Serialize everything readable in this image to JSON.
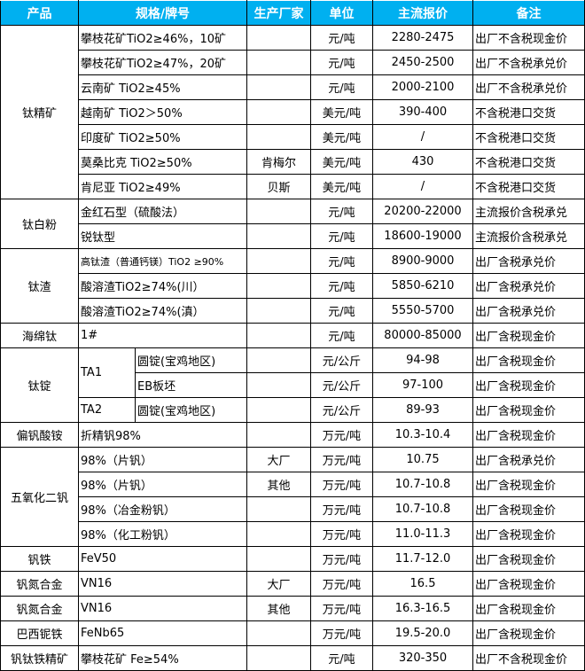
{
  "colors": {
    "header_bg": "#00B0F0",
    "header_text": "#FFFFFF"
  },
  "headers": [
    "产品",
    "规格/牌号",
    "生产厂家",
    "单位",
    "主流报价",
    "备注"
  ],
  "groups": [
    {
      "product": "钛精矿",
      "rows": [
        {
          "spec": "攀枝花矿TiO2≥46%，10矿",
          "maker": "",
          "unit": "元/吨",
          "price": "2280-2475",
          "note": "出厂不含税现金价"
        },
        {
          "spec": "攀枝花矿TiO2≥47%，20矿",
          "maker": "",
          "unit": "元/吨",
          "price": "2450-2500",
          "note": "出厂不含税承兑价"
        },
        {
          "spec": "云南矿 TiO2≥45%",
          "maker": "",
          "unit": "元/吨",
          "price": "2000-2100",
          "note": "出厂不含税承兑价"
        },
        {
          "spec": "越南矿 TiO2＞50%",
          "maker": "",
          "unit": "美元/吨",
          "price": "390-400",
          "note": "不含税港口交货"
        },
        {
          "spec": "印度矿 TiO2≥50%",
          "maker": "",
          "unit": "美元/吨",
          "price": "/",
          "note": "不含税港口交货"
        },
        {
          "spec": "莫桑比克 TiO2≥50%",
          "maker": "肯梅尔",
          "unit": "美元/吨",
          "price": "430",
          "note": "不含税港口交货"
        },
        {
          "spec": "肯尼亚 TiO2≥49%",
          "maker": "贝斯",
          "unit": "美元/吨",
          "price": "/",
          "note": "不含税港口交货"
        }
      ]
    },
    {
      "product": "钛白粉",
      "rows": [
        {
          "spec": "金红石型（硫酸法）",
          "maker": "",
          "unit": "元/吨",
          "price": "20200-22000",
          "note": "主流报价含税承兑"
        },
        {
          "spec": "锐钛型",
          "maker": "",
          "unit": "元/吨",
          "price": "18600-19000",
          "note": "主流报价含税承兑"
        }
      ]
    },
    {
      "product": "钛渣",
      "rows": [
        {
          "spec": "高钛渣（普通钙镁）TiO2 ≥90%",
          "maker": "",
          "unit": "元/吨",
          "price": "8900-9000",
          "note": "出厂含税承兑价",
          "small": true
        },
        {
          "spec": "酸溶渣TiO2≥74%(川）",
          "maker": "",
          "unit": "元/吨",
          "price": "5850-6210",
          "note": "出厂含税承兑价"
        },
        {
          "spec": "酸溶渣TiO2≥74%(滇）",
          "maker": "",
          "unit": "元/吨",
          "price": "5550-5700",
          "note": "出厂含税承兑价"
        }
      ]
    },
    {
      "product": "海绵钛",
      "rows": [
        {
          "spec": "1#",
          "maker": "",
          "unit": "元/吨",
          "price": "80000-85000",
          "note": "出厂含税现金价"
        }
      ]
    },
    {
      "product": "钛锭",
      "rows": [
        {
          "grade": "TA1",
          "grade_span": 2,
          "spec": "圆锭(宝鸡地区)",
          "maker": "",
          "unit": "元/公斤",
          "price": "94-98",
          "note": "出厂含税现金价"
        },
        {
          "spec": "EB板坯",
          "maker": "",
          "unit": "元/公斤",
          "price": "97-100",
          "note": "出厂含税现金价"
        },
        {
          "grade": "TA2",
          "grade_span": 1,
          "spec": "圆锭(宝鸡地区)",
          "maker": "",
          "unit": "元/公斤",
          "price": "89-93",
          "note": "出厂含税现金价"
        }
      ]
    },
    {
      "product": "偏钒酸铵",
      "rows": [
        {
          "spec": "折精钒98%",
          "maker": "",
          "unit": "万元/吨",
          "price": "10.3-10.4",
          "note": "出厂含税现金价"
        }
      ]
    },
    {
      "product": "五氧化二钒",
      "rows": [
        {
          "spec": "98%（片钒）",
          "maker": "大厂",
          "unit": "万元/吨",
          "price": "10.75",
          "note": "出厂含税承兑价"
        },
        {
          "spec": "98%（片钒）",
          "maker": "其他",
          "unit": "万元/吨",
          "price": "10.7-10.8",
          "note": "出厂含税现金价"
        },
        {
          "spec": "98%（冶金粉钒）",
          "maker": "",
          "unit": "万元/吨",
          "price": "10.7-10.8",
          "note": "出厂含税现金价"
        },
        {
          "spec": "98%（化工粉钒）",
          "maker": "",
          "unit": "万元/吨",
          "price": "11.0-11.3",
          "note": "出厂含税现金价"
        }
      ]
    },
    {
      "product": "钒铁",
      "rows": [
        {
          "spec": "FeV50",
          "maker": "",
          "unit": "万元/吨",
          "price": "11.7-12.0",
          "note": "出厂含税现金价"
        }
      ]
    },
    {
      "product": "钒氮合金",
      "rows": [
        {
          "spec": "VN16",
          "maker": "大厂",
          "unit": "万元/吨",
          "price": "16.5",
          "note": "出厂含税现金价"
        }
      ]
    },
    {
      "product": "钒氮合金",
      "rows": [
        {
          "spec": "VN16",
          "maker": "其他",
          "unit": "万元/吨",
          "price": "16.3-16.5",
          "note": "出厂含税现金价"
        }
      ]
    },
    {
      "product": "巴西铌铁",
      "rows": [
        {
          "spec": "FeNb65",
          "maker": "",
          "unit": "万元/吨",
          "price": "19.5-20.0",
          "note": "出厂含税现金价"
        }
      ]
    },
    {
      "product": "钒钛铁精矿",
      "rows": [
        {
          "spec": "攀枝花矿 Fe≥54%",
          "maker": "",
          "unit": "元/吨",
          "price": "320-350",
          "note": "出厂不含税现金价"
        }
      ]
    }
  ]
}
